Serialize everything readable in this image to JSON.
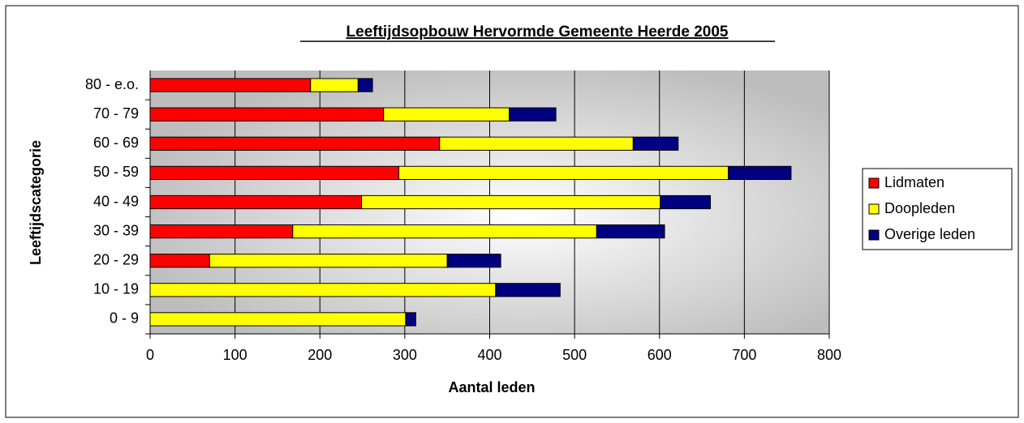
{
  "chart_data": {
    "type": "stacked_barh",
    "title": "Leeftijdsopbouw Hervormde Gemeente Heerde 2005",
    "xlabel": "Aantal leden",
    "ylabel": "Leeftijdscategorie",
    "categories": [
      "0 - 9",
      "10 - 19",
      "20 - 29",
      "30 - 39",
      "40 - 49",
      "50 - 59",
      "60 - 69",
      "70 - 79",
      "80 - e.o."
    ],
    "series": [
      {
        "name": "Lidmaten",
        "color": "#ff0000",
        "values": [
          0,
          0,
          70,
          168,
          249,
          293,
          341,
          275,
          189
        ]
      },
      {
        "name": "Doopleden",
        "color": "#ffff00",
        "values": [
          301,
          407,
          280,
          358,
          352,
          388,
          228,
          148,
          56
        ]
      },
      {
        "name": "Overige leden",
        "color": "#000080",
        "values": [
          12,
          76,
          63,
          80,
          59,
          74,
          53,
          55,
          17
        ]
      }
    ],
    "xlim": [
      0,
      800
    ],
    "xticks": [
      0,
      100,
      200,
      300,
      400,
      500,
      600,
      700,
      800
    ],
    "grid": true,
    "legend": "right"
  }
}
